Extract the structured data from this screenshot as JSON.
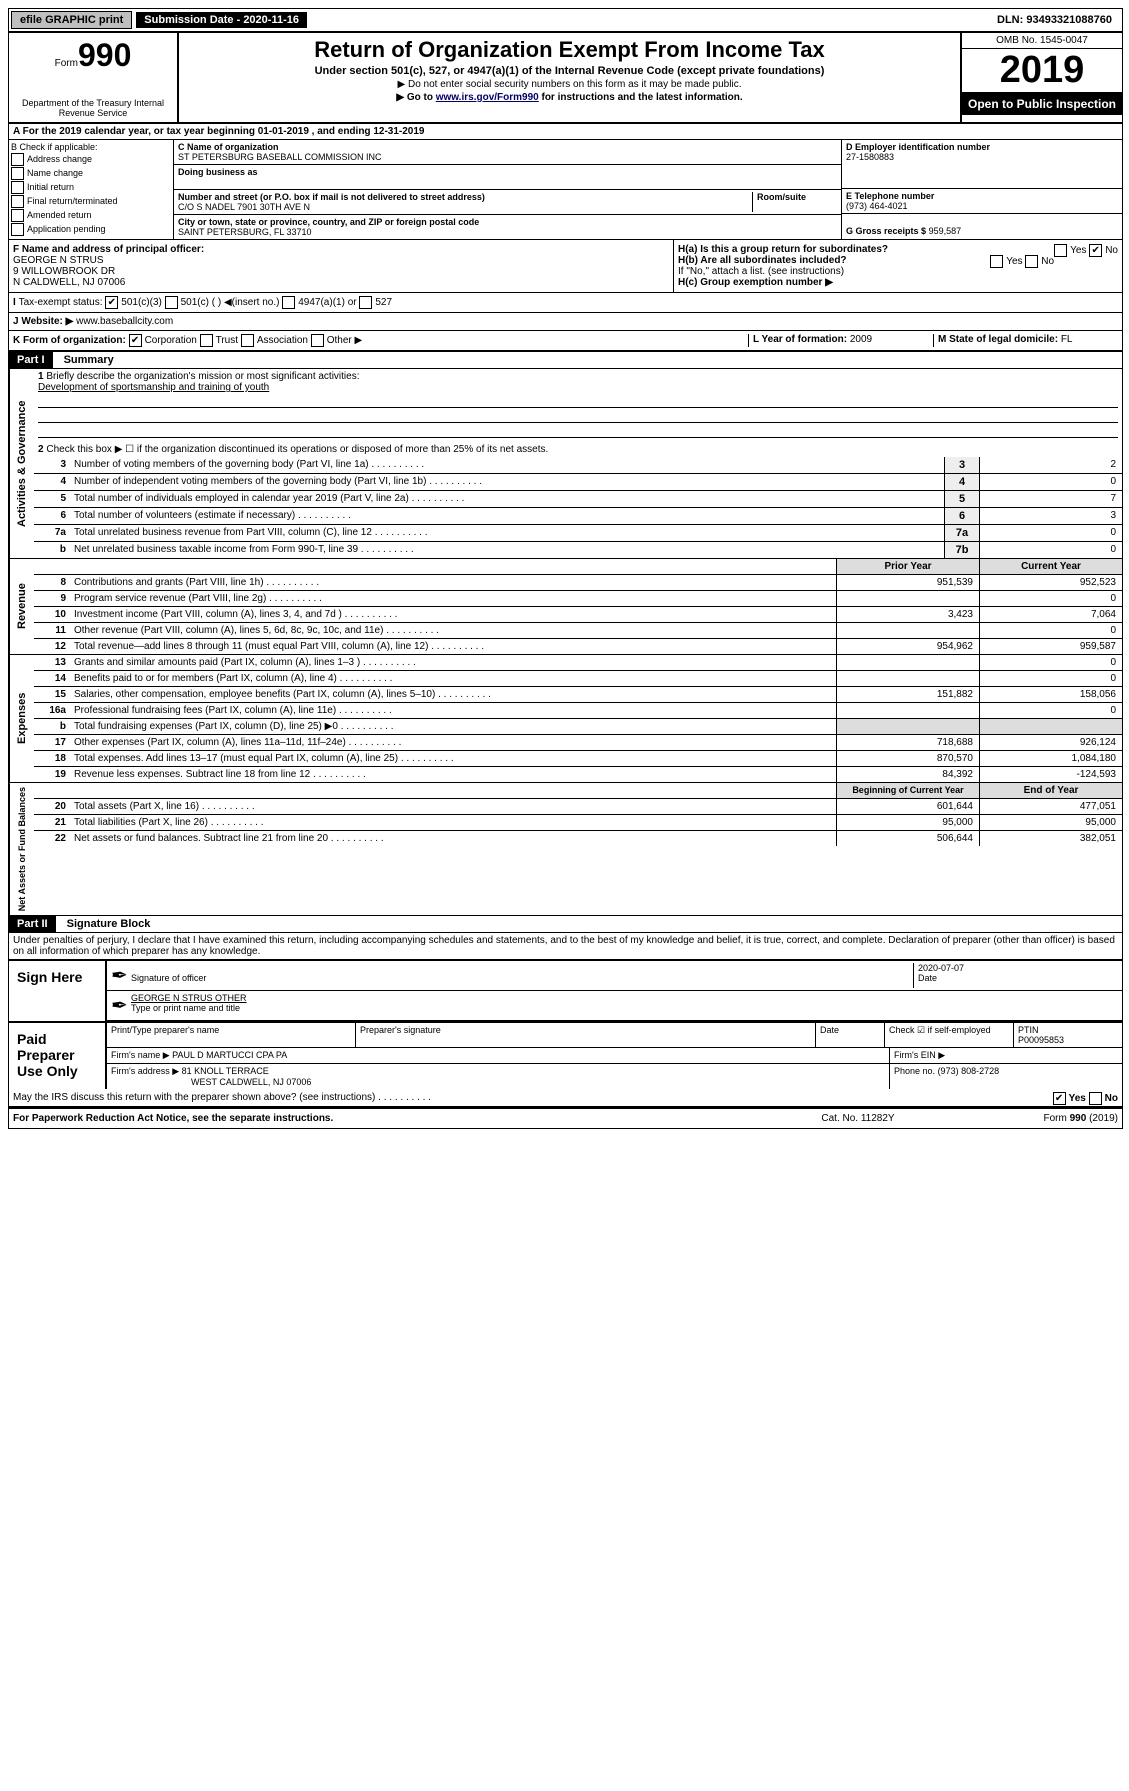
{
  "topbar": {
    "efile": "efile GRAPHIC print",
    "submission_label": "Submission Date - 2020-11-16",
    "dln": "DLN: 93493321088760"
  },
  "header": {
    "form_label": "Form",
    "form_num": "990",
    "dept": "Department of the Treasury\nInternal Revenue Service",
    "title": "Return of Organization Exempt From Income Tax",
    "subtitle": "Under section 501(c), 527, or 4947(a)(1) of the Internal Revenue Code (except private foundations)",
    "sub2": "▶ Do not enter social security numbers on this form as it may be made public.",
    "sub3": "▶ Go to www.irs.gov/Form990 for instructions and the latest information.",
    "omb": "OMB No. 1545-0047",
    "year": "2019",
    "open": "Open to Public Inspection"
  },
  "rowA": "A For the 2019 calendar year, or tax year beginning 01-01-2019    , and ending 12-31-2019",
  "boxB": {
    "header": "B Check if applicable:",
    "items": [
      "Address change",
      "Name change",
      "Initial return",
      "Final return/terminated",
      "Amended return",
      "Application pending"
    ]
  },
  "boxC": {
    "name_label": "C Name of organization",
    "name": "ST PETERSBURG BASEBALL COMMISSION INC",
    "dba_label": "Doing business as",
    "addr_label": "Number and street (or P.O. box if mail is not delivered to street address)",
    "room_label": "Room/suite",
    "addr": "C/O S NADEL 7901 30TH AVE N",
    "city_label": "City or town, state or province, country, and ZIP or foreign postal code",
    "city": "SAINT PETERSBURG, FL  33710"
  },
  "boxD": {
    "label": "D Employer identification number",
    "value": "27-1580883"
  },
  "boxE": {
    "label": "E Telephone number",
    "value": "(973) 464-4021"
  },
  "boxG": {
    "label": "G Gross receipts $",
    "value": "959,587"
  },
  "boxF": {
    "label": "F  Name and address of principal officer:",
    "name": "GEORGE N STRUS",
    "addr1": "9 WILLOWBROOK DR",
    "addr2": "N CALDWELL, NJ  07006"
  },
  "boxH": {
    "ha": "H(a)  Is this a group return for subordinates?",
    "yes": "Yes",
    "no": "No",
    "hb": "H(b)  Are all subordinates included?",
    "hb2": "If \"No,\" attach a list. (see instructions)",
    "hc": "H(c)  Group exemption number ▶"
  },
  "taxExempt": {
    "label": "Tax-exempt status:",
    "c3": "501(c)(3)",
    "c": "501(c) (   ) ◀(insert no.)",
    "a1": "4947(a)(1) or",
    "s527": "527"
  },
  "website": {
    "label": "Website: ▶",
    "value": "www.baseballcity.com"
  },
  "boxK": {
    "label": "K Form of organization:",
    "corp": "Corporation",
    "trust": "Trust",
    "assoc": "Association",
    "other": "Other ▶"
  },
  "boxL": {
    "label": "L Year of formation:",
    "value": "2009"
  },
  "boxM": {
    "label": "M State of legal domicile:",
    "value": "FL"
  },
  "part1": {
    "hdr": "Part I",
    "title": "Summary"
  },
  "summary": {
    "q1": "Briefly describe the organization's mission or most significant activities:",
    "a1": "Development of sportsmanship and training of youth",
    "q2": "Check this box ▶ ☐  if the organization discontinued its operations or disposed of more than 25% of its net assets.",
    "lines": [
      {
        "n": "3",
        "t": "Number of voting members of the governing body (Part VI, line 1a)",
        "box": "3",
        "v": "2"
      },
      {
        "n": "4",
        "t": "Number of independent voting members of the governing body (Part VI, line 1b)",
        "box": "4",
        "v": "0"
      },
      {
        "n": "5",
        "t": "Total number of individuals employed in calendar year 2019 (Part V, line 2a)",
        "box": "5",
        "v": "7"
      },
      {
        "n": "6",
        "t": "Total number of volunteers (estimate if necessary)",
        "box": "6",
        "v": "3"
      },
      {
        "n": "7a",
        "t": "Total unrelated business revenue from Part VIII, column (C), line 12",
        "box": "7a",
        "v": "0"
      },
      {
        "n": "b",
        "t": "Net unrelated business taxable income from Form 990-T, line 39",
        "box": "7b",
        "v": "0"
      }
    ]
  },
  "revHeaders": {
    "prior": "Prior Year",
    "current": "Current Year"
  },
  "revenue": [
    {
      "n": "8",
      "t": "Contributions and grants (Part VIII, line 1h)",
      "p": "951,539",
      "c": "952,523"
    },
    {
      "n": "9",
      "t": "Program service revenue (Part VIII, line 2g)",
      "p": "",
      "c": "0"
    },
    {
      "n": "10",
      "t": "Investment income (Part VIII, column (A), lines 3, 4, and 7d )",
      "p": "3,423",
      "c": "7,064"
    },
    {
      "n": "11",
      "t": "Other revenue (Part VIII, column (A), lines 5, 6d, 8c, 9c, 10c, and 11e)",
      "p": "",
      "c": "0"
    },
    {
      "n": "12",
      "t": "Total revenue—add lines 8 through 11 (must equal Part VIII, column (A), line 12)",
      "p": "954,962",
      "c": "959,587"
    }
  ],
  "expenses": [
    {
      "n": "13",
      "t": "Grants and similar amounts paid (Part IX, column (A), lines 1–3 )",
      "p": "",
      "c": "0"
    },
    {
      "n": "14",
      "t": "Benefits paid to or for members (Part IX, column (A), line 4)",
      "p": "",
      "c": "0"
    },
    {
      "n": "15",
      "t": "Salaries, other compensation, employee benefits (Part IX, column (A), lines 5–10)",
      "p": "151,882",
      "c": "158,056"
    },
    {
      "n": "16a",
      "t": "Professional fundraising fees (Part IX, column (A), line 11e)",
      "p": "",
      "c": "0"
    },
    {
      "n": "b",
      "t": "Total fundraising expenses (Part IX, column (D), line 25) ▶0",
      "p": "—",
      "c": "—"
    },
    {
      "n": "17",
      "t": "Other expenses (Part IX, column (A), lines 11a–11d, 11f–24e)",
      "p": "718,688",
      "c": "926,124"
    },
    {
      "n": "18",
      "t": "Total expenses. Add lines 13–17 (must equal Part IX, column (A), line 25)",
      "p": "870,570",
      "c": "1,084,180"
    },
    {
      "n": "19",
      "t": "Revenue less expenses. Subtract line 18 from line 12",
      "p": "84,392",
      "c": "-124,593"
    }
  ],
  "netHeaders": {
    "beg": "Beginning of Current Year",
    "end": "End of Year"
  },
  "netassets": [
    {
      "n": "20",
      "t": "Total assets (Part X, line 16)",
      "p": "601,644",
      "c": "477,051"
    },
    {
      "n": "21",
      "t": "Total liabilities (Part X, line 26)",
      "p": "95,000",
      "c": "95,000"
    },
    {
      "n": "22",
      "t": "Net assets or fund balances. Subtract line 21 from line 20",
      "p": "506,644",
      "c": "382,051"
    }
  ],
  "vlabels": {
    "ag": "Activities & Governance",
    "rev": "Revenue",
    "exp": "Expenses",
    "net": "Net Assets or\nFund Balances"
  },
  "part2": {
    "hdr": "Part II",
    "title": "Signature Block"
  },
  "perjury": "Under penalties of perjury, I declare that I have examined this return, including accompanying schedules and statements, and to the best of my knowledge and belief, it is true, correct, and complete. Declaration of preparer (other than officer) is based on all information of which preparer has any knowledge.",
  "sign": {
    "here": "Sign Here",
    "sig_officer": "Signature of officer",
    "date": "2020-07-07",
    "date_label": "Date",
    "name": "GEORGE N STRUS  OTHER",
    "name_label": "Type or print name and title"
  },
  "paid": {
    "label": "Paid Preparer Use Only",
    "print_label": "Print/Type preparer's name",
    "sig_label": "Preparer's signature",
    "date_label": "Date",
    "check_label": "Check ☑ if self-employed",
    "ptin_label": "PTIN",
    "ptin": "P00095853",
    "firm_name_label": "Firm's name     ▶",
    "firm_name": "PAUL D MARTUCCI CPA PA",
    "firm_ein_label": "Firm's EIN ▶",
    "firm_addr_label": "Firm's address ▶",
    "firm_addr": "81 KNOLL TERRACE",
    "firm_city": "WEST CALDWELL, NJ  07006",
    "phone_label": "Phone no.",
    "phone": "(973) 808-2728"
  },
  "discuss": "May the IRS discuss this return with the preparer shown above? (see instructions)",
  "footer": {
    "pra": "For Paperwork Reduction Act Notice, see the separate instructions.",
    "cat": "Cat. No. 11282Y",
    "form": "Form 990 (2019)"
  }
}
